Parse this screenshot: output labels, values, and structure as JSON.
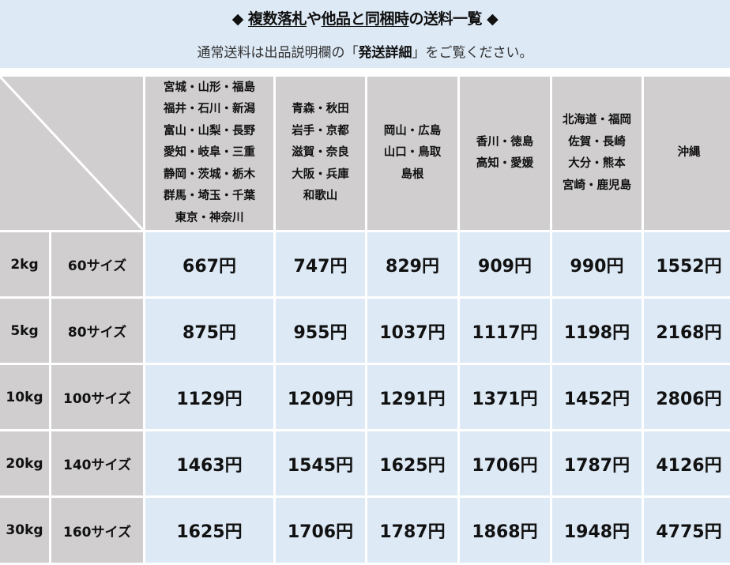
{
  "banner": {
    "title_prefix": "◆ ",
    "title_u1": "複数落札",
    "title_mid": "や",
    "title_u2": "他品と同梱時",
    "title_suffix": "の送料一覧 ◆",
    "subtitle_pre": "通常送料は出品説明欄の「",
    "subtitle_bold": "発送詳細",
    "subtitle_post": "」をご覧ください。"
  },
  "table": {
    "regions": [
      "宮城・山形・福島\n福井・石川・新潟\n富山・山梨・長野\n愛知・岐阜・三重\n静岡・茨城・栃木\n群馬・埼玉・千葉\n東京・神奈川",
      "青森・秋田\n岩手・京都\n滋賀・奈良\n大阪・兵庫\n和歌山",
      "岡山・広島\n山口・鳥取\n島根",
      "香川・徳島\n高知・愛媛",
      "北海道・福岡\n佐賀・長崎\n大分・熊本\n宮崎・鹿児島",
      "沖縄"
    ],
    "rows": [
      {
        "weight": "2kg",
        "size": "60サイズ",
        "prices": [
          "667円",
          "747円",
          "829円",
          "909円",
          "990円",
          "1552円"
        ]
      },
      {
        "weight": "5kg",
        "size": "80サイズ",
        "prices": [
          "875円",
          "955円",
          "1037円",
          "1117円",
          "1198円",
          "2168円"
        ]
      },
      {
        "weight": "10kg",
        "size": "100サイズ",
        "prices": [
          "1129円",
          "1209円",
          "1291円",
          "1371円",
          "1452円",
          "2806円"
        ]
      },
      {
        "weight": "20kg",
        "size": "140サイズ",
        "prices": [
          "1463円",
          "1545円",
          "1625円",
          "1706円",
          "1787円",
          "4126円"
        ]
      },
      {
        "weight": "30kg",
        "size": "160サイズ",
        "prices": [
          "1625円",
          "1706円",
          "1787円",
          "1868円",
          "1948円",
          "4775円"
        ]
      }
    ]
  },
  "colors": {
    "header_bg": "#d0cecf",
    "price_bg": "#dde9f5",
    "banner_bg": "#dde9f5"
  }
}
